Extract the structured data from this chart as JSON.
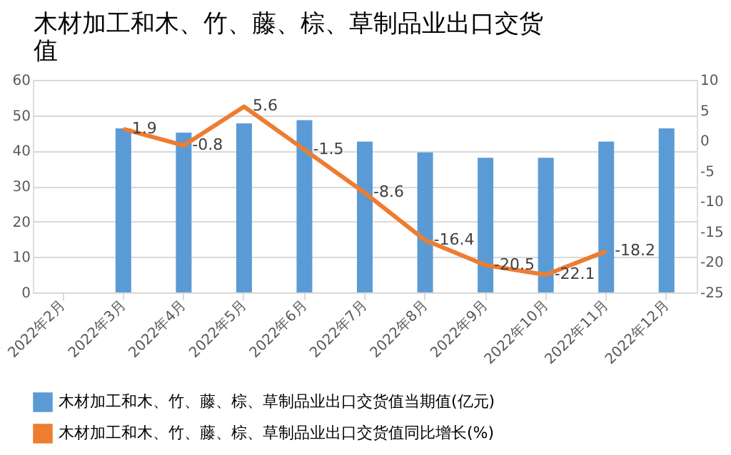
{
  "chart_data": {
    "type": "bar",
    "title": "木材加工和木、竹、藤、棕、草制品业出口交货值",
    "categories": [
      "2022年2月",
      "2022年3月",
      "2022年4月",
      "2022年5月",
      "2022年6月",
      "2022年7月",
      "2022年8月",
      "2022年9月",
      "2022年10月",
      "2022年11月",
      "2022年12月"
    ],
    "series": [
      {
        "name": "木材加工和木、竹、藤、棕、草制品业出口交货值当期值(亿元)",
        "color": "#5b9bd5",
        "values": [
          null,
          46.3,
          45.1,
          47.7,
          48.6,
          42.6,
          39.5,
          38.0,
          38.0,
          42.6,
          46.3
        ]
      },
      {
        "name": "木材加工和木、竹、藤、棕、草制品业出口交货值同比增长(%)",
        "type": "line",
        "axis": "y2",
        "color": "#ed7d31",
        "data_labels": true,
        "values": [
          null,
          1.9,
          -0.8,
          5.6,
          -1.5,
          -8.6,
          -16.4,
          -20.5,
          -22.1,
          -18.2,
          null
        ]
      }
    ],
    "ylim": [
      0,
      60
    ],
    "yticks": [
      0,
      10,
      20,
      30,
      40,
      50,
      60
    ],
    "y2lim": [
      -25,
      10
    ],
    "y2ticks": [
      -25,
      -20,
      -15,
      -10,
      -5,
      0,
      5,
      10
    ],
    "grid": "y",
    "legend": "bottom",
    "marker": "none",
    "line_style": "solid"
  }
}
